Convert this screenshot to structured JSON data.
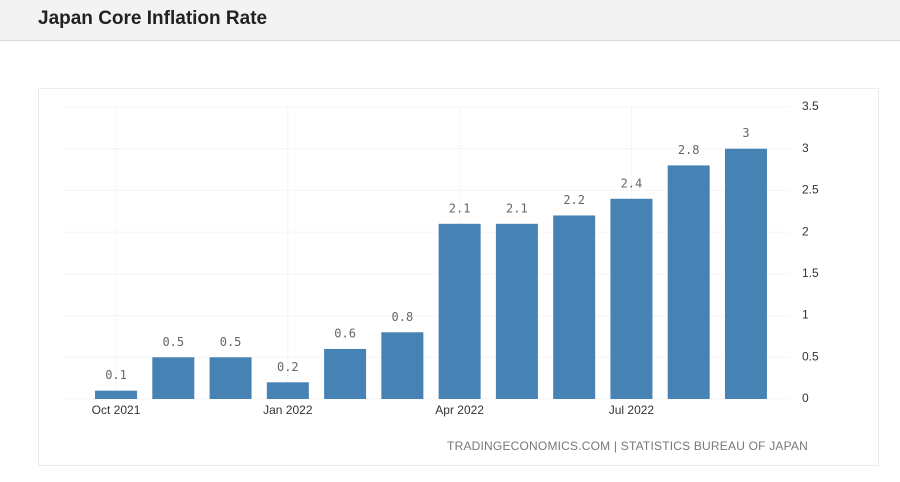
{
  "chart_data": {
    "type": "bar",
    "title": "Japan Core Inflation Rate",
    "source": "TRADINGECONOMICS.COM | STATISTICS BUREAU OF JAPAN",
    "categories": [
      "Oct 2021",
      null,
      null,
      "Jan 2022",
      null,
      null,
      "Apr 2022",
      null,
      null,
      "Jul 2022",
      null,
      null
    ],
    "values": [
      0.1,
      0.5,
      0.5,
      0.2,
      0.6,
      0.8,
      2.1,
      2.1,
      2.2,
      2.4,
      2.8,
      3
    ],
    "color": "#4682b4",
    "ylim": [
      0,
      3.5
    ],
    "yticks": [
      0,
      0.5,
      1,
      1.5,
      2,
      2.5,
      3,
      3.5
    ],
    "grid": true
  }
}
